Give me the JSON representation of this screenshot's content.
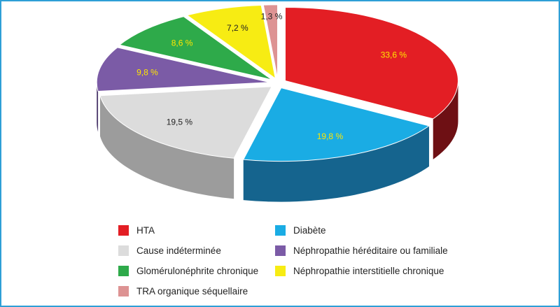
{
  "chart_data": {
    "type": "pie",
    "style": "3d-exploded",
    "slices": [
      {
        "label": "HTA",
        "value": 33.6,
        "display": "33,6 %",
        "color": "#e31e24",
        "side_color": "#6e1014",
        "label_color": "#ffe600"
      },
      {
        "label": "Diabète",
        "value": 19.8,
        "display": "19,8 %",
        "color": "#1aace4",
        "side_color": "#15648e",
        "label_color": "#ffe600"
      },
      {
        "label": "Cause indéterminée",
        "value": 19.5,
        "display": "19,5 %",
        "color": "#dcdcdc",
        "side_color": "#9c9c9c",
        "label_color": "#222222"
      },
      {
        "label": "Néphropathie héréditaire ou familiale",
        "value": 9.8,
        "display": "9,8 %",
        "color": "#7b5ba6",
        "side_color": "#4d3a6d",
        "label_color": "#ffe600"
      },
      {
        "label": "Glomérulonéphrite chronique",
        "value": 8.6,
        "display": "8,6 %",
        "color": "#2eaa4a",
        "side_color": "#1d6b2f",
        "label_color": "#ffe600"
      },
      {
        "label": "Néphropathie interstitielle chronique",
        "value": 7.2,
        "display": "7,2 %",
        "color": "#f7ec13",
        "side_color": "#9b9410",
        "label_color": "#222222"
      },
      {
        "label": "TRA organique séquellaire",
        "value": 1.3,
        "display": "1,3 %",
        "color": "#dd9393",
        "side_color": "#9a6060",
        "label_color": "#222222"
      }
    ],
    "legend": {
      "placement": "bottom",
      "order": [
        "HTA",
        "Diabète",
        "Cause indéterminée",
        "Néphropathie héréditaire ou familiale",
        "Glomérulonéphrite chronique",
        "Néphropathie interstitielle chronique",
        "TRA organique séquellaire"
      ]
    }
  },
  "colors": {
    "frame_border": "#2e9fd6",
    "background": "#ffffff"
  }
}
